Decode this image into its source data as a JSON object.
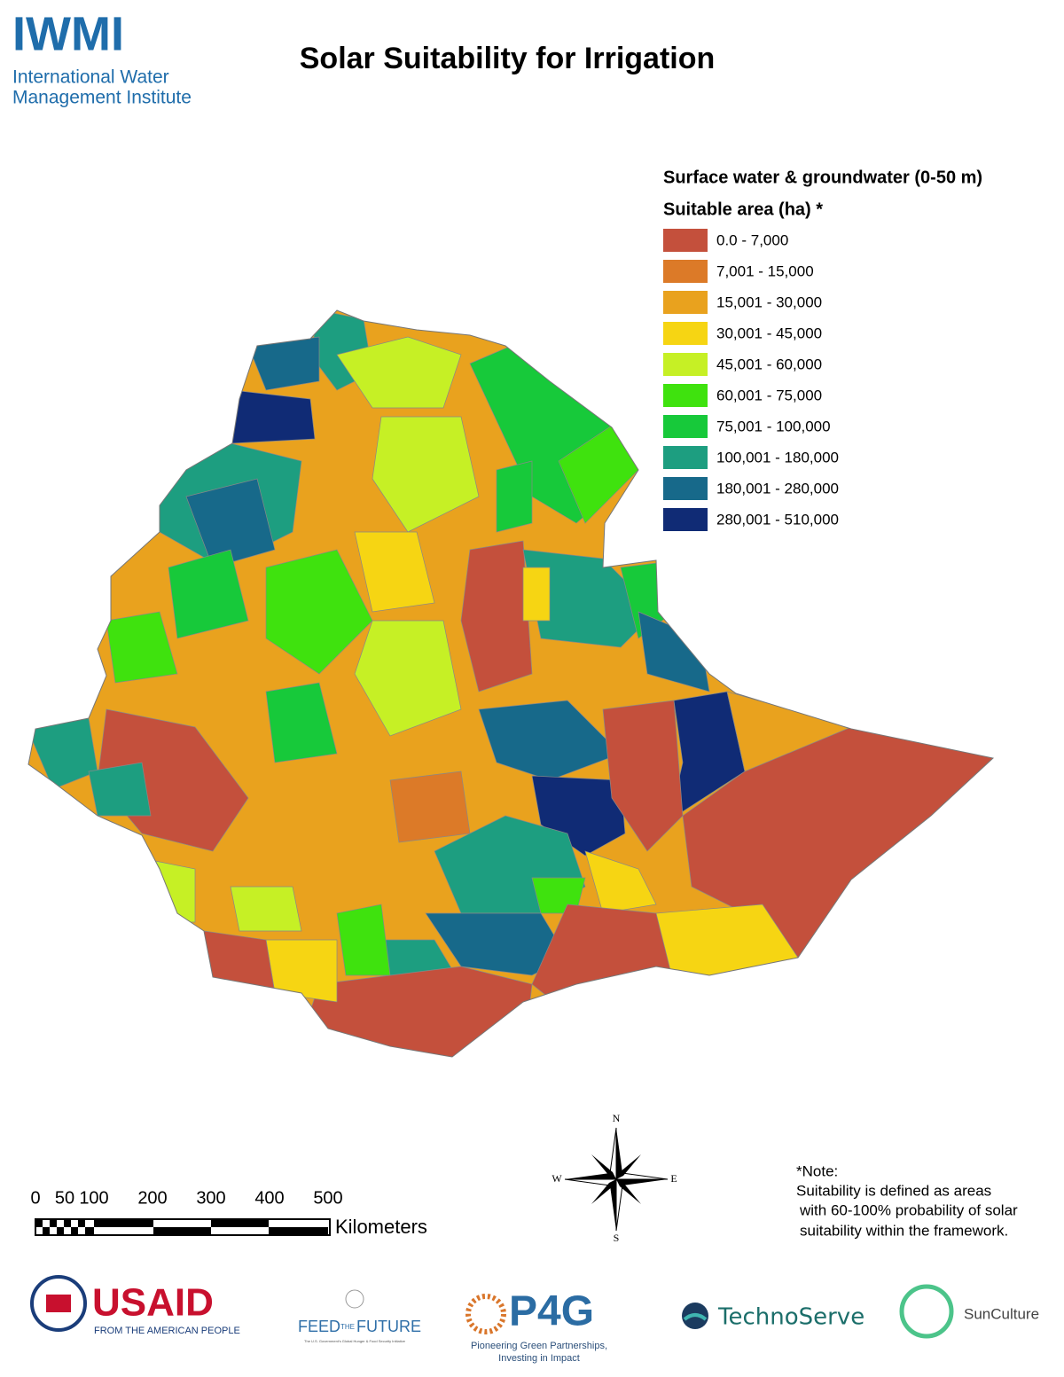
{
  "header": {
    "logo": "IWMI",
    "org_line1": "International Water",
    "org_line2": "Management Institute",
    "title": "Solar Suitability for Irrigation"
  },
  "legend": {
    "title": "Surface water & groundwater (0-50 m)",
    "subtitle": "Suitable area (ha) *",
    "items": [
      {
        "label": "0.0 - 7,000",
        "color": "#c4503c"
      },
      {
        "label": "7,001 - 15,000",
        "color": "#dc7a28"
      },
      {
        "label": "15,001 - 30,000",
        "color": "#e9a21e"
      },
      {
        "label": "30,001 - 45,000",
        "color": "#f6d513"
      },
      {
        "label": "45,001 - 60,000",
        "color": "#c6f025"
      },
      {
        "label": "60,001 - 75,000",
        "color": "#3fe20e"
      },
      {
        "label": "75,001 - 100,000",
        "color": "#17c93a"
      },
      {
        "label": "100,001 - 180,000",
        "color": "#1d9e80"
      },
      {
        "label": "180,001 - 280,000",
        "color": "#17698a"
      },
      {
        "label": "280,001 - 510,000",
        "color": "#102b75"
      }
    ]
  },
  "scale_bar": {
    "ticks": [
      0,
      50,
      100,
      200,
      300,
      400,
      500
    ],
    "unit": "Kilometers"
  },
  "compass": {
    "n": "N",
    "s": "S",
    "e": "E",
    "w": "W"
  },
  "note": {
    "heading": "*Note:",
    "lines": [
      "Suitability is defined as areas",
      "with 60-100% probability of solar",
      "suitability within the framework."
    ]
  },
  "footer": {
    "usaid": "USAID",
    "usaid_tagline": "FROM THE AMERICAN PEOPLE",
    "ftf_1": "FEED",
    "ftf_2": "THE",
    "ftf_3": "FUTURE",
    "ftf_tagline": "The U.S. Government's Global Hunger & Food Security Initiative",
    "p4g": "P4G",
    "p4g_line1": "Pioneering Green Partnerships,",
    "p4g_line2": "Investing in Impact",
    "technoserve": "TechnoServe",
    "sunculture": "SunCulture"
  }
}
